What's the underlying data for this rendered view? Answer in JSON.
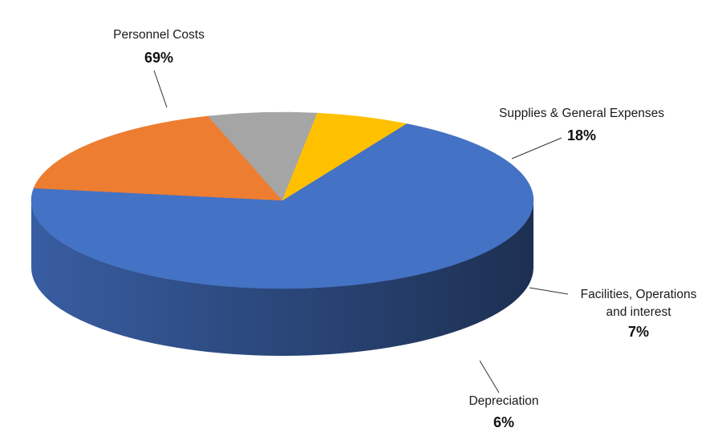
{
  "chart_data": {
    "type": "pie",
    "style": "3d",
    "slices": [
      {
        "label": "Personnel Costs",
        "label_lines": [
          "Personnel Costs"
        ],
        "value": 69,
        "value_label": "69%",
        "color": "#4472C4"
      },
      {
        "label": "Supplies & General Expenses",
        "label_lines": [
          "Supplies & General Expenses"
        ],
        "value": 18,
        "value_label": "18%",
        "color": "#ED7D31"
      },
      {
        "label": "Facilities, Operations and interest",
        "label_lines": [
          "Facilities, Operations",
          "and interest"
        ],
        "value": 7,
        "value_label": "7%",
        "color": "#A5A5A5"
      },
      {
        "label": "Depreciation",
        "label_lines": [
          "Depreciation"
        ],
        "value": 6,
        "value_label": "6%",
        "color": "#FFC000"
      }
    ]
  }
}
